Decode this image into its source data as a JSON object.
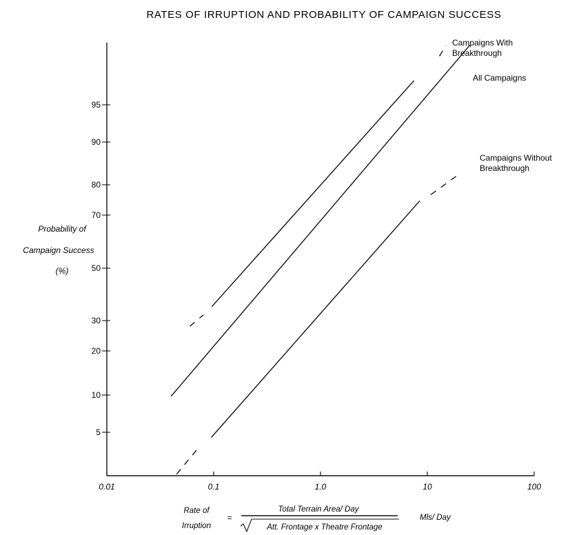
{
  "chart_data": {
    "type": "line",
    "title": "RATES OF IRRUPTION AND PROBABILITY OF CAMPAIGN SUCCESS",
    "ylabel_lines": [
      "Probability of",
      "Campaign Success",
      "(%)"
    ],
    "x_scale": "log",
    "y_scale": "probability",
    "xlim": [
      0.01,
      100
    ],
    "x_ticks": [
      0.01,
      0.1,
      1.0,
      10,
      100
    ],
    "x_tick_labels": [
      "0.01",
      "0.1",
      "1.0",
      "10",
      "100"
    ],
    "y_ticks": [
      5,
      10,
      20,
      30,
      50,
      70,
      80,
      90,
      95
    ],
    "y_tick_labels": [
      "5",
      "10",
      "20",
      "30",
      "50",
      "70",
      "80",
      "90",
      "95"
    ],
    "grid": false,
    "legend": "labels at line ends",
    "xlabel": {
      "prefix_lines": [
        "Rate of",
        "Irruption"
      ],
      "equals": "=",
      "numerator": "Total Terrain Area/ Day",
      "denominator": "Att. Frontage x Theatre Frontage",
      "units": "Mls/ Day"
    },
    "series": [
      {
        "name": "Campaigns With Breakthrough",
        "label_lines": [
          "Campaigns With",
          "Breakthrough"
        ],
        "solid": [
          [
            0.096,
            35
          ],
          [
            7.5,
            97
          ]
        ],
        "dashed_start": [
          [
            0.06,
            28
          ],
          [
            0.08,
            32
          ]
        ],
        "dashed_end": [
          [
            13,
            98.3
          ],
          [
            15,
            98.7
          ]
        ]
      },
      {
        "name": "All Campaigns",
        "label_lines": [
          "All Campaigns"
        ],
        "solid": [
          [
            0.04,
            9.8
          ],
          [
            25,
            98.7
          ]
        ]
      },
      {
        "name": "Campaigns Without Breakthrough",
        "label_lines": [
          "Campaigns Without",
          "Breakthrough"
        ],
        "solid": [
          [
            0.095,
            4.5
          ],
          [
            8.5,
            75
          ]
        ],
        "dashed_start": [
          [
            0.045,
            2
          ],
          [
            0.07,
            3.5
          ]
        ],
        "dashed_end": [
          [
            10.8,
            77
          ],
          [
            20,
            83
          ]
        ]
      }
    ]
  }
}
